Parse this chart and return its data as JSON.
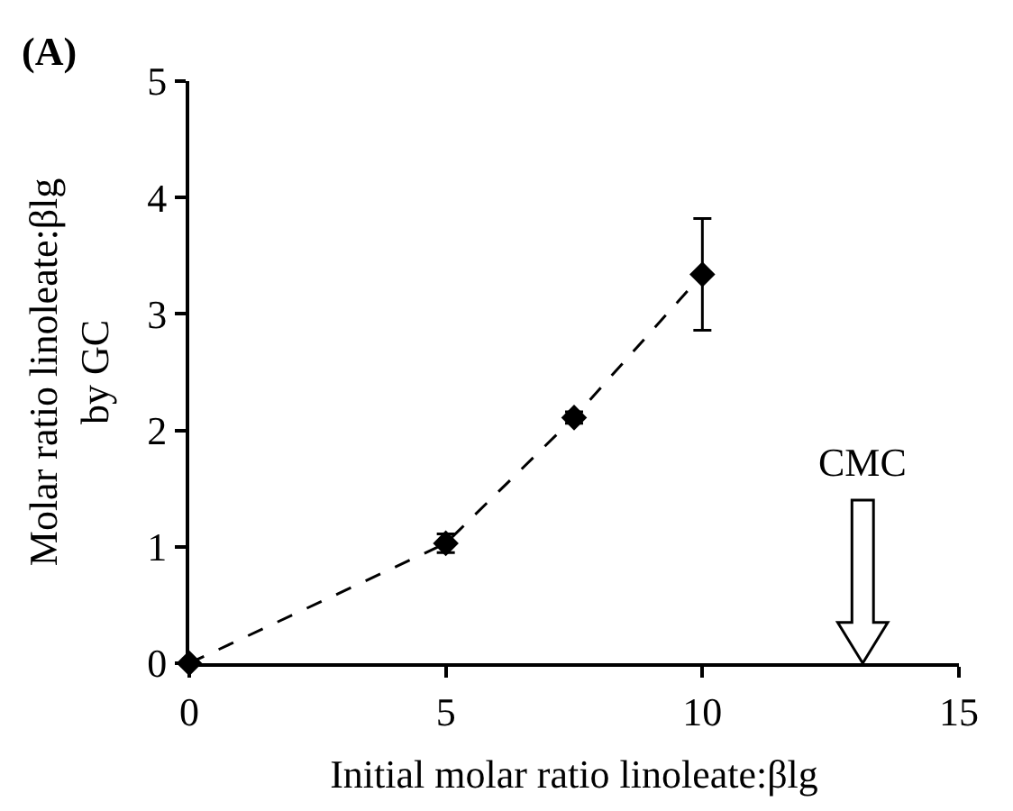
{
  "chart_data": {
    "type": "line",
    "xlabel": "Initial molar ratio linoleate:βlg",
    "ylabel": "Molar ratio linoleate:βlg\nby GC",
    "x": [
      0,
      5,
      7.5,
      10
    ],
    "values": [
      0,
      1.03,
      2.11,
      3.34
    ],
    "errors": [
      null,
      0.08,
      0.05,
      0.48
    ],
    "color": "#000000",
    "marker": "diamond",
    "line_style": "dashed",
    "xlim": [
      0,
      15
    ],
    "xticks": [
      0,
      5,
      10,
      15
    ],
    "ylim": [
      0,
      5
    ],
    "yticks": [
      0,
      1,
      2,
      3,
      4,
      5
    ],
    "annotations": [
      "(A)",
      "CMC"
    ]
  }
}
